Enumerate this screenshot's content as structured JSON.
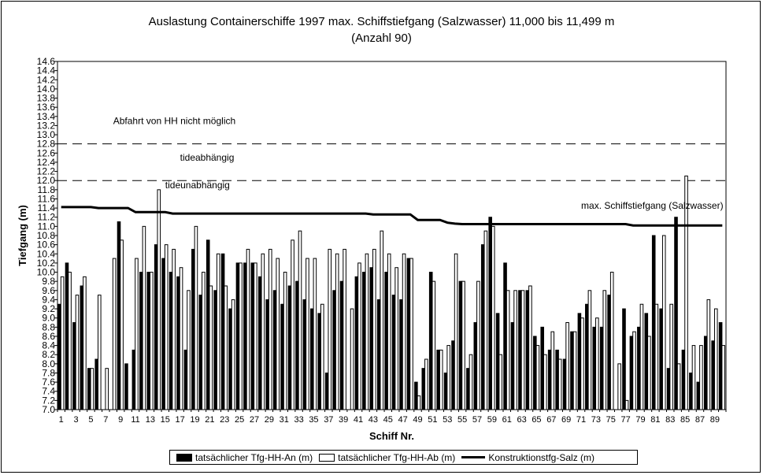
{
  "title": {
    "line1": "Auslastung Containerschiffe 1997 max. Schiffstiefgang (Salzwasser) 11,000 bis 11,499 m",
    "line2": "(Anzahl 90)"
  },
  "chart_data": {
    "type": "bar",
    "xlabel": "Schiff Nr.",
    "ylabel": "Tiefgang (m)",
    "ylim": [
      7.0,
      14.6
    ],
    "ytick_step": 0.2,
    "x_tick_labels": [
      "1",
      "3",
      "5",
      "7",
      "9",
      "11",
      "13",
      "15",
      "17",
      "19",
      "21",
      "23",
      "25",
      "27",
      "29",
      "31",
      "33",
      "35",
      "37",
      "39",
      "41",
      "43",
      "45",
      "47",
      "49",
      "51",
      "53",
      "55",
      "57",
      "59",
      "61",
      "63",
      "65",
      "67",
      "69",
      "71",
      "73",
      "75",
      "77",
      "79",
      "81",
      "83",
      "85",
      "87",
      "89"
    ],
    "categories": [
      1,
      2,
      3,
      4,
      5,
      6,
      7,
      8,
      9,
      10,
      11,
      12,
      13,
      14,
      15,
      16,
      17,
      18,
      19,
      20,
      21,
      22,
      23,
      24,
      25,
      26,
      27,
      28,
      29,
      30,
      31,
      32,
      33,
      34,
      35,
      36,
      37,
      38,
      39,
      40,
      41,
      42,
      43,
      44,
      45,
      46,
      47,
      48,
      49,
      50,
      51,
      52,
      53,
      54,
      55,
      56,
      57,
      58,
      59,
      60,
      61,
      62,
      63,
      64,
      65,
      66,
      67,
      68,
      69,
      70,
      71,
      72,
      73,
      74,
      75,
      76,
      77,
      78,
      79,
      80,
      81,
      82,
      83,
      84,
      85,
      86,
      87,
      88,
      89,
      90
    ],
    "series": [
      {
        "name": "tatsächlicher Tfg-HH-An (m)",
        "style": "filled",
        "color": "#000000",
        "values": [
          9.3,
          10.2,
          8.9,
          9.7,
          7.9,
          8.1,
          null,
          null,
          11.1,
          8.0,
          8.3,
          10.0,
          10.0,
          10.6,
          10.3,
          10.0,
          9.9,
          8.3,
          10.5,
          9.5,
          10.7,
          9.6,
          10.4,
          9.2,
          10.2,
          10.2,
          10.2,
          9.9,
          9.4,
          9.6,
          9.3,
          9.7,
          9.8,
          9.4,
          9.2,
          9.1,
          7.8,
          9.6,
          9.8,
          null,
          9.9,
          10.0,
          10.1,
          9.4,
          10.0,
          9.5,
          9.4,
          10.3,
          7.6,
          7.9,
          10.0,
          8.3,
          7.8,
          8.5,
          9.8,
          7.9,
          8.9,
          10.6,
          11.2,
          9.1,
          10.2,
          8.9,
          9.6,
          9.6,
          8.6,
          8.8,
          8.3,
          8.3,
          8.1,
          8.7,
          9.1,
          9.3,
          8.8,
          8.8,
          9.5,
          null,
          9.2,
          8.6,
          8.8,
          9.1,
          10.8,
          9.2,
          7.9,
          11.2,
          8.3,
          7.8,
          7.6,
          8.6,
          8.5,
          8.9
        ]
      },
      {
        "name": "tatsächlicher Tfg-HH-Ab (m)",
        "style": "open",
        "color": "#ffffff",
        "values": [
          9.9,
          10.0,
          9.5,
          9.9,
          7.9,
          9.5,
          7.9,
          10.3,
          10.7,
          null,
          10.3,
          11.0,
          10.0,
          11.8,
          10.6,
          10.5,
          10.1,
          9.6,
          11.0,
          10.0,
          9.7,
          10.4,
          9.7,
          9.4,
          10.2,
          10.5,
          10.2,
          10.4,
          10.5,
          10.3,
          10.0,
          10.7,
          10.9,
          10.3,
          10.3,
          9.3,
          10.5,
          10.4,
          10.5,
          9.2,
          10.2,
          10.4,
          10.5,
          10.9,
          10.4,
          10.1,
          10.4,
          10.3,
          7.3,
          8.1,
          9.8,
          8.3,
          8.4,
          10.4,
          9.8,
          8.2,
          9.8,
          10.9,
          11.0,
          8.2,
          9.6,
          9.6,
          9.6,
          9.7,
          8.4,
          8.2,
          8.7,
          8.1,
          8.9,
          8.7,
          9.0,
          9.6,
          9.0,
          9.6,
          10.0,
          8.0,
          7.2,
          8.7,
          9.3,
          8.6,
          9.3,
          10.8,
          9.3,
          8.0,
          12.1,
          8.4,
          8.4,
          9.4,
          9.2,
          8.4
        ]
      },
      {
        "name": "Konstruktionstfg-Salz (m)",
        "style": "line",
        "color": "#000000",
        "values": [
          11.42,
          11.42,
          11.42,
          11.42,
          11.42,
          11.4,
          11.4,
          11.4,
          11.4,
          11.4,
          11.31,
          11.31,
          11.31,
          11.31,
          11.31,
          11.28,
          11.28,
          11.28,
          11.28,
          11.28,
          11.28,
          11.28,
          11.28,
          11.28,
          11.28,
          11.28,
          11.28,
          11.28,
          11.28,
          11.28,
          11.28,
          11.28,
          11.28,
          11.28,
          11.28,
          11.28,
          11.28,
          11.28,
          11.28,
          11.28,
          11.28,
          11.28,
          11.26,
          11.26,
          11.26,
          11.26,
          11.26,
          11.26,
          11.14,
          11.14,
          11.14,
          11.14,
          11.08,
          11.06,
          11.05,
          11.05,
          11.05,
          11.05,
          11.05,
          11.05,
          11.05,
          11.05,
          11.05,
          11.05,
          11.05,
          11.05,
          11.05,
          11.05,
          11.05,
          11.05,
          11.05,
          11.05,
          11.05,
          11.05,
          11.05,
          11.05,
          11.05,
          11.02,
          11.02,
          11.02,
          11.02,
          11.02,
          11.02,
          11.02,
          11.02,
          11.02,
          11.02,
          11.02,
          11.02,
          11.02
        ]
      }
    ],
    "reference_lines": [
      {
        "y": 12.8,
        "style": "dashed"
      },
      {
        "y": 12.0,
        "style": "dashed"
      }
    ],
    "annotations": [
      {
        "text": "Abfahrt von HH nicht möglich",
        "y": 13.3,
        "x": 8
      },
      {
        "text": "tideabhängig",
        "y": 12.5,
        "x": 17
      },
      {
        "text": "tideunabhängig",
        "y": 11.9,
        "x": 15
      },
      {
        "text": "max. Schiffstiefgang (Salzwasser)",
        "y": 11.45,
        "x": 71
      }
    ],
    "legend_position": "bottom-center"
  }
}
